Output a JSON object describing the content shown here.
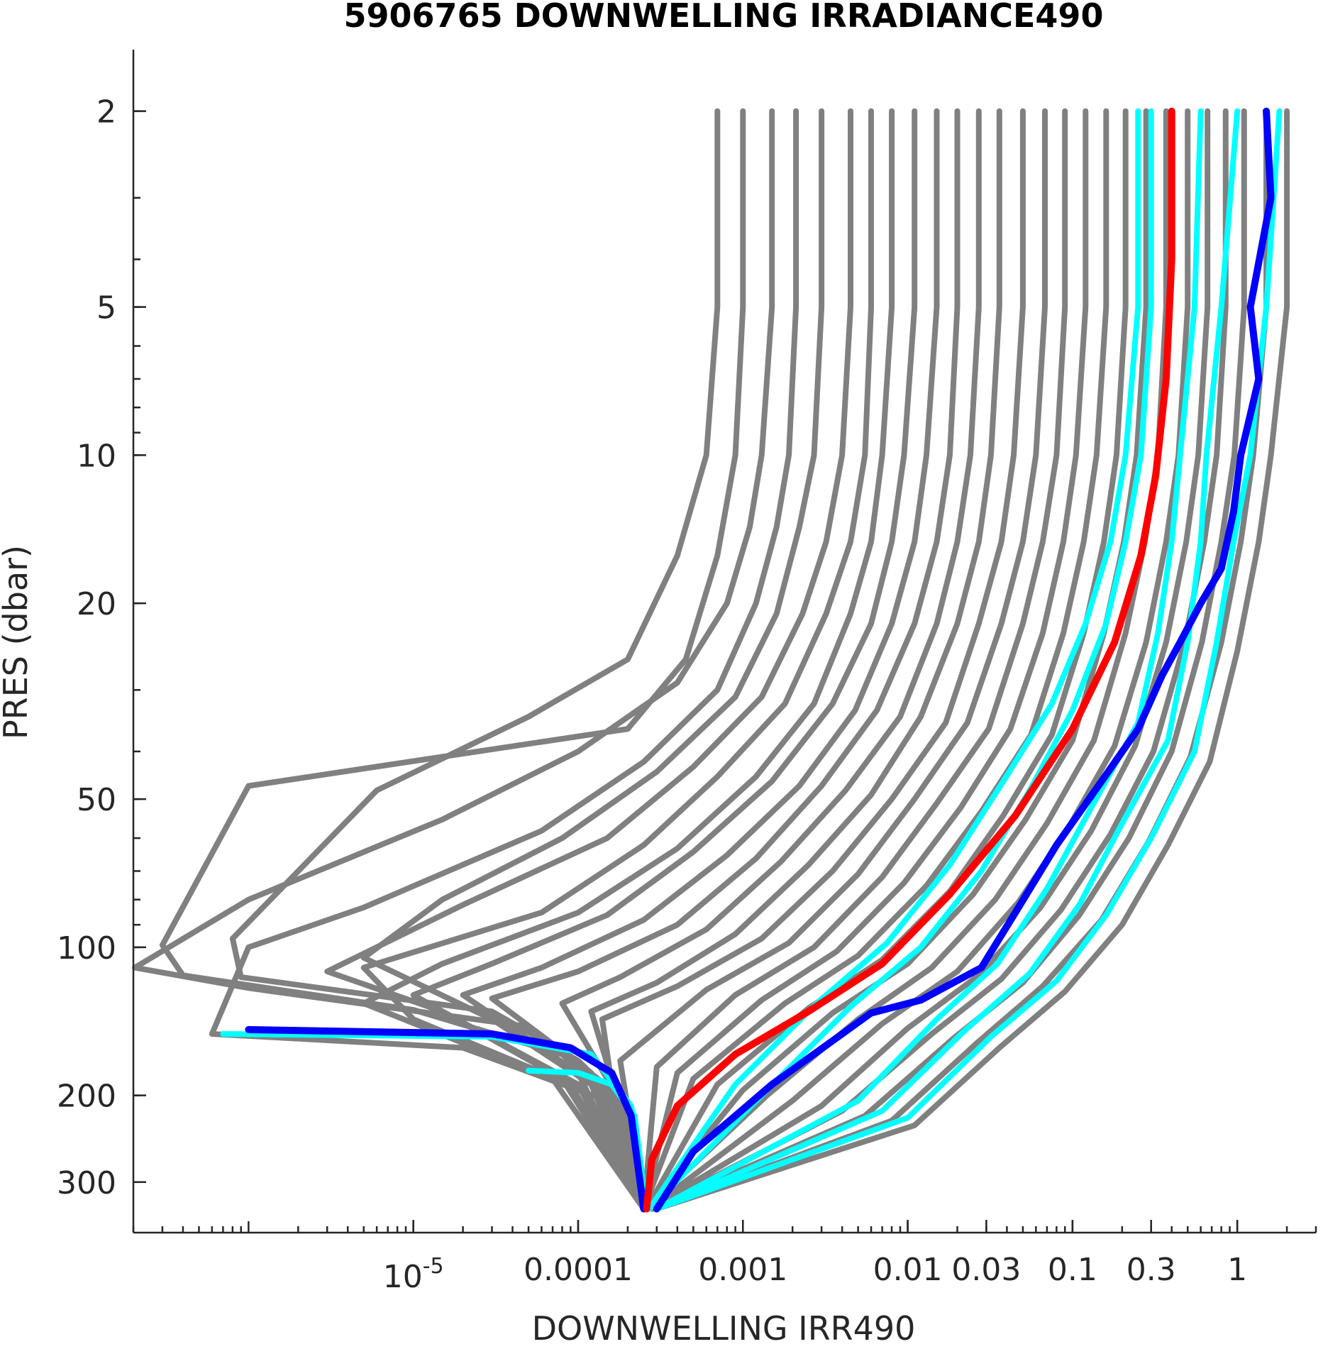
{
  "chart_data": {
    "type": "line",
    "title": "5906765  DOWNWELLING IRRADIANCE490",
    "xlabel": "DOWNWELLING IRR490",
    "ylabel": "PRES (dbar)",
    "x_scale": "log",
    "y_scale": "log",
    "y_reversed": true,
    "xlim": [
      2e-07,
      3
    ],
    "ylim": [
      1.5,
      380
    ],
    "x_ticks": [
      {
        "value": 1e-05,
        "label": "10",
        "exponent": "-5"
      },
      {
        "value": 0.0001,
        "label": "0.0001"
      },
      {
        "value": 0.001,
        "label": "0.001"
      },
      {
        "value": 0.01,
        "label": "0.01"
      },
      {
        "value": 0.03,
        "label": "0.03"
      },
      {
        "value": 0.1,
        "label": "0.1"
      },
      {
        "value": 0.3,
        "label": "0.3"
      },
      {
        "value": 1,
        "label": "1"
      }
    ],
    "y_ticks": [
      {
        "value": 2,
        "label": "2"
      },
      {
        "value": 5,
        "label": "5"
      },
      {
        "value": 10,
        "label": "10"
      },
      {
        "value": 20,
        "label": "20"
      },
      {
        "value": 50,
        "label": "50"
      },
      {
        "value": 100,
        "label": "100"
      },
      {
        "value": 200,
        "label": "200"
      },
      {
        "value": 300,
        "label": "300"
      }
    ],
    "grid": false,
    "legend": "none",
    "colors": {
      "all_profiles": "#808080",
      "recent_profiles": "#00ffff",
      "last_profile": "#0000ff",
      "mean_profile": "#ff0000"
    },
    "series": [
      {
        "group": "all",
        "x": [
          0.0007,
          0.0007,
          0.0006,
          0.0004,
          0.0002,
          5e-05,
          6e-06,
          8e-07,
          9e-07,
          3e-05,
          0.0001,
          0.00022,
          0.00025
        ],
        "y": [
          2,
          5,
          10,
          16,
          26,
          34,
          48,
          96,
          115,
          135,
          170,
          220,
          340
        ]
      },
      {
        "group": "all",
        "x": [
          0.001,
          0.001,
          0.0009,
          0.0007,
          0.00045,
          0.0002,
          1e-06,
          3e-07,
          4e-07,
          1e-05,
          8e-05,
          0.0002,
          0.00025
        ],
        "y": [
          2,
          5,
          10,
          16,
          26,
          36,
          47,
          99,
          114,
          134,
          165,
          220,
          340
        ]
      },
      {
        "group": "all",
        "x": [
          0.0015,
          0.0015,
          0.0013,
          0.0011,
          0.0008,
          0.0004,
          0.0001,
          1.5e-05,
          1e-06,
          2e-07,
          1e-06,
          5e-05,
          0.00018,
          0.00025
        ],
        "y": [
          2,
          5,
          10,
          14,
          20,
          29,
          40,
          55,
          80,
          110,
          121,
          145,
          200,
          340
        ]
      },
      {
        "group": "all",
        "x": [
          0.0021,
          0.0021,
          0.0019,
          0.0016,
          0.0012,
          0.0007,
          0.00025,
          6e-05,
          5e-06,
          1e-06,
          6e-07,
          2e-05,
          0.00015,
          0.00025
        ],
        "y": [
          2,
          5,
          10,
          14,
          20,
          30,
          42,
          58,
          83,
          100,
          150,
          160,
          205,
          340
        ]
      },
      {
        "group": "all",
        "x": [
          0.003,
          0.003,
          0.0027,
          0.0022,
          0.0016,
          0.0009,
          0.0003,
          8e-05,
          1.5e-05,
          5e-06,
          3e-05,
          0.00012,
          0.00025
        ],
        "y": [
          2,
          5,
          10,
          14,
          21,
          31,
          44,
          60,
          80,
          105,
          140,
          190,
          340
        ]
      },
      {
        "group": "all",
        "x": [
          0.0045,
          0.0045,
          0.004,
          0.0032,
          0.0023,
          0.0013,
          0.0005,
          0.00015,
          2e-05,
          3e-06,
          1.5e-05,
          0.0001,
          0.00025
        ],
        "y": [
          2,
          5,
          10,
          15,
          21,
          31,
          43,
          60,
          82,
          112,
          135,
          190,
          340
        ]
      },
      {
        "group": "all",
        "x": [
          0.006,
          0.006,
          0.0055,
          0.0045,
          0.0032,
          0.0018,
          0.0007,
          0.00025,
          6e-05,
          5e-06,
          1e-05,
          9e-05,
          0.00025
        ],
        "y": [
          2,
          5,
          10,
          15,
          21,
          32,
          45,
          62,
          85,
          110,
          140,
          190,
          340
        ]
      },
      {
        "group": "all",
        "x": [
          0.008,
          0.008,
          0.007,
          0.006,
          0.0045,
          0.0027,
          0.0012,
          0.0004,
          0.0001,
          1.5e-05,
          5e-06,
          7e-05,
          0.00025
        ],
        "y": [
          2,
          5,
          10,
          15,
          21,
          32,
          45,
          63,
          85,
          108,
          130,
          185,
          340
        ]
      },
      {
        "group": "all",
        "x": [
          0.011,
          0.011,
          0.0095,
          0.008,
          0.006,
          0.0035,
          0.0015,
          0.0005,
          0.00015,
          3e-05,
          1e-05,
          8e-05,
          0.00025
        ],
        "y": [
          2,
          5,
          10,
          15,
          22,
          32,
          46,
          64,
          86,
          108,
          125,
          185,
          340
        ]
      },
      {
        "group": "all",
        "x": [
          0.015,
          0.015,
          0.013,
          0.011,
          0.008,
          0.0048,
          0.0022,
          0.0008,
          0.00025,
          6e-05,
          2e-05,
          0.0001,
          0.00025
        ],
        "y": [
          2,
          5,
          10,
          15,
          22,
          33,
          47,
          65,
          88,
          110,
          125,
          180,
          340
        ]
      },
      {
        "group": "all",
        "x": [
          0.02,
          0.02,
          0.018,
          0.015,
          0.011,
          0.0065,
          0.003,
          0.0012,
          0.0004,
          0.0001,
          3e-05,
          0.00012,
          0.00025
        ],
        "y": [
          2,
          5,
          10,
          15,
          22,
          33,
          47,
          66,
          90,
          112,
          127,
          180,
          340
        ]
      },
      {
        "group": "all",
        "x": [
          0.027,
          0.027,
          0.024,
          0.02,
          0.015,
          0.009,
          0.0042,
          0.0017,
          0.0006,
          0.00018,
          8e-05,
          0.00015,
          0.00025
        ],
        "y": [
          2,
          5,
          10,
          15,
          22,
          34,
          48,
          67,
          92,
          115,
          130,
          185,
          340
        ]
      },
      {
        "group": "all",
        "x": [
          0.036,
          0.036,
          0.032,
          0.027,
          0.02,
          0.012,
          0.006,
          0.0025,
          0.0009,
          0.0003,
          0.00012,
          0.00016,
          0.00025
        ],
        "y": [
          2,
          5,
          10,
          15,
          22,
          34,
          49,
          68,
          94,
          118,
          135,
          185,
          340
        ]
      },
      {
        "group": "all",
        "x": [
          0.05,
          0.05,
          0.044,
          0.037,
          0.027,
          0.017,
          0.008,
          0.0035,
          0.0013,
          0.0004,
          0.00014,
          0.00016,
          0.00025
        ],
        "y": [
          2,
          5,
          10,
          15,
          22,
          35,
          50,
          70,
          96,
          120,
          140,
          190,
          340
        ]
      },
      {
        "group": "all",
        "x": [
          0.068,
          0.068,
          0.06,
          0.05,
          0.037,
          0.023,
          0.011,
          0.005,
          0.0019,
          0.0006,
          0.00018,
          0.00025
        ],
        "y": [
          2,
          5,
          10,
          15,
          22,
          35,
          50,
          71,
          98,
          122,
          170,
          340
        ]
      },
      {
        "group": "all",
        "x": [
          0.09,
          0.09,
          0.08,
          0.066,
          0.05,
          0.031,
          0.015,
          0.007,
          0.0027,
          0.0009,
          0.0003,
          0.00025
        ],
        "y": [
          2,
          5,
          10,
          15,
          22,
          36,
          51,
          72,
          100,
          125,
          175,
          340
        ]
      },
      {
        "group": "all",
        "x": [
          0.12,
          0.12,
          0.105,
          0.088,
          0.066,
          0.042,
          0.021,
          0.0095,
          0.0037,
          0.0013,
          0.0004,
          0.00025
        ],
        "y": [
          2,
          5,
          10,
          15,
          23,
          36,
          52,
          74,
          102,
          128,
          180,
          340
        ]
      },
      {
        "group": "all",
        "x": [
          0.16,
          0.16,
          0.14,
          0.117,
          0.088,
          0.056,
          0.028,
          0.013,
          0.005,
          0.0018,
          0.0005,
          0.00025
        ],
        "y": [
          2,
          5,
          10,
          15,
          23,
          37,
          53,
          75,
          104,
          130,
          185,
          340
        ]
      },
      {
        "group": "all",
        "x": [
          0.21,
          0.21,
          0.185,
          0.155,
          0.117,
          0.075,
          0.038,
          0.018,
          0.007,
          0.0025,
          0.0007,
          0.00026
        ],
        "y": [
          2,
          5,
          10,
          15,
          23,
          37,
          54,
          77,
          106,
          133,
          190,
          340
        ]
      },
      {
        "group": "all",
        "x": [
          0.28,
          0.28,
          0.245,
          0.205,
          0.155,
          0.1,
          0.052,
          0.025,
          0.01,
          0.0035,
          0.001,
          0.00026
        ],
        "y": [
          2,
          5,
          10,
          15,
          23,
          38,
          55,
          78,
          108,
          136,
          195,
          340
        ]
      },
      {
        "group": "all",
        "x": [
          0.37,
          0.37,
          0.33,
          0.275,
          0.21,
          0.135,
          0.07,
          0.034,
          0.014,
          0.005,
          0.0014,
          0.00026
        ],
        "y": [
          2,
          5,
          10,
          15,
          23,
          38,
          56,
          80,
          110,
          140,
          200,
          340
        ]
      },
      {
        "group": "all",
        "x": [
          0.5,
          0.5,
          0.44,
          0.37,
          0.28,
          0.18,
          0.095,
          0.047,
          0.02,
          0.007,
          0.002,
          0.00027
        ],
        "y": [
          2,
          5,
          10,
          15,
          24,
          39,
          57,
          81,
          112,
          143,
          205,
          340
        ]
      },
      {
        "group": "all",
        "x": [
          0.66,
          0.66,
          0.58,
          0.49,
          0.37,
          0.24,
          0.13,
          0.064,
          0.027,
          0.01,
          0.003,
          0.00027
        ],
        "y": [
          2,
          5,
          10,
          15,
          24,
          39,
          58,
          83,
          114,
          146,
          210,
          340
        ]
      },
      {
        "group": "all",
        "x": [
          0.85,
          0.85,
          0.75,
          0.63,
          0.48,
          0.31,
          0.17,
          0.085,
          0.037,
          0.014,
          0.004,
          0.00028
        ],
        "y": [
          2,
          5,
          10,
          15,
          24,
          40,
          59,
          84,
          116,
          150,
          215,
          340
        ]
      },
      {
        "group": "all",
        "x": [
          1.1,
          1.1,
          0.96,
          0.8,
          0.61,
          0.4,
          0.22,
          0.11,
          0.05,
          0.019,
          0.0055,
          0.00028
        ],
        "y": [
          2,
          5,
          10,
          15,
          24,
          40,
          60,
          86,
          118,
          153,
          220,
          340
        ]
      },
      {
        "group": "all",
        "x": [
          1.5,
          1.5,
          1.25,
          1.05,
          0.8,
          0.52,
          0.29,
          0.15,
          0.066,
          0.026,
          0.008,
          0.00029
        ],
        "y": [
          2,
          5,
          10,
          15,
          24,
          41,
          61,
          88,
          120,
          157,
          225,
          340
        ]
      },
      {
        "group": "all",
        "x": [
          2.0,
          2.0,
          1.6,
          1.35,
          1.0,
          0.68,
          0.38,
          0.2,
          0.09,
          0.036,
          0.011,
          0.0003
        ],
        "y": [
          2,
          5,
          10,
          15,
          25,
          42,
          62,
          90,
          123,
          160,
          230,
          340
        ]
      },
      {
        "group": "recent",
        "x": [
          0.25,
          0.25,
          0.21,
          0.17,
          0.12,
          0.075,
          0.038,
          0.018,
          0.0075,
          0.0028,
          0.0009,
          0.00027
        ],
        "y": [
          2,
          5,
          10,
          15,
          22,
          32,
          46,
          68,
          98,
          130,
          190,
          340
        ]
      },
      {
        "group": "recent",
        "x": [
          0.3,
          0.3,
          0.26,
          0.21,
          0.16,
          0.1,
          0.055,
          0.028,
          0.012,
          0.0045,
          0.0014,
          0.00027
        ],
        "y": [
          2,
          5,
          10,
          15,
          22,
          33,
          48,
          70,
          100,
          132,
          195,
          340
        ]
      },
      {
        "group": "recent",
        "x": [
          0.6,
          0.55,
          0.45,
          0.4,
          0.33,
          0.25,
          0.13,
          0.07,
          0.035,
          0.015,
          0.005,
          0.0003
        ],
        "y": [
          2,
          5,
          10,
          15,
          23,
          35,
          52,
          76,
          108,
          140,
          205,
          340
        ]
      },
      {
        "group": "recent",
        "x": [
          1.0,
          0.8,
          0.65,
          0.6,
          0.5,
          0.38,
          0.2,
          0.11,
          0.055,
          0.022,
          0.007,
          0.0003
        ],
        "y": [
          2,
          5,
          10,
          15,
          24,
          38,
          56,
          82,
          113,
          148,
          215,
          340
        ]
      },
      {
        "group": "recent",
        "x": [
          1.8,
          1.5,
          1.2,
          0.95,
          0.75,
          0.55,
          0.3,
          0.16,
          0.08,
          0.032,
          0.01,
          0.0003
        ],
        "y": [
          2,
          5,
          10,
          15,
          24,
          40,
          60,
          86,
          117,
          152,
          222,
          340
        ]
      },
      {
        "group": "recent",
        "x": [
          5e-05,
          0.0001,
          0.00016,
          0.00022,
          0.00026
        ],
        "y": [
          178,
          180,
          190,
          220,
          340
        ]
      },
      {
        "group": "recent",
        "x": [
          7e-07,
          3e-05,
          0.00012,
          0.00021,
          0.00026
        ],
        "y": [
          150,
          152,
          165,
          210,
          340
        ]
      },
      {
        "group": "last",
        "x": [
          1.5,
          1.6,
          1.2,
          1.35,
          1.05,
          0.95,
          0.8,
          0.6,
          0.45,
          0.35,
          0.25,
          0.15,
          0.08,
          0.045,
          0.028,
          0.012,
          0.006,
          0.004,
          0.0015,
          0.0009,
          0.0005,
          0.0003
        ],
        "y": [
          2,
          3,
          5,
          7,
          10,
          13,
          17,
          20,
          24,
          28,
          36,
          46,
          62,
          85,
          110,
          128,
          136,
          150,
          190,
          220,
          260,
          340
        ]
      },
      {
        "group": "last",
        "x": [
          1e-06,
          3e-05,
          9e-05,
          0.00016,
          0.00021,
          0.00025
        ],
        "y": [
          147,
          150,
          160,
          180,
          220,
          340
        ]
      },
      {
        "group": "mean",
        "x": [
          0.4,
          0.4,
          0.37,
          0.32,
          0.26,
          0.18,
          0.1,
          0.045,
          0.018,
          0.007,
          0.0025,
          0.0009,
          0.0004,
          0.00028,
          0.00026
        ],
        "y": [
          2,
          4,
          7,
          11,
          16,
          24,
          36,
          54,
          78,
          108,
          135,
          165,
          210,
          270,
          340
        ]
      }
    ]
  }
}
